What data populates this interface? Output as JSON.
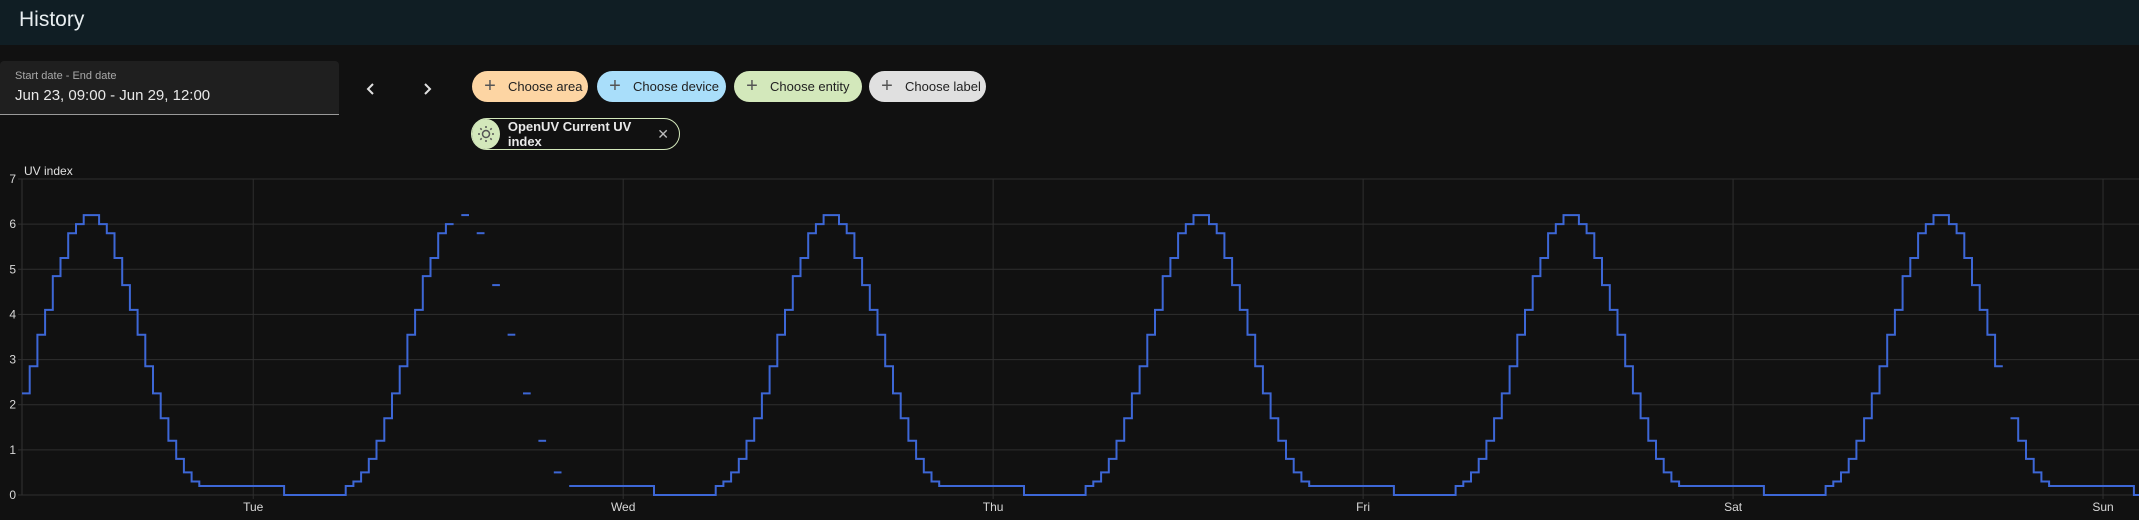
{
  "header": {
    "title": "History"
  },
  "date_picker": {
    "label": "Start date - End date",
    "value": "Jun 23, 09:00 - Jun 29, 12:00"
  },
  "nav": {
    "prev_icon": "chevron-left-icon",
    "next_icon": "chevron-right-icon"
  },
  "target_chips": [
    {
      "label": "Choose area",
      "color": "#fdd5a3",
      "icon": "plus-icon"
    },
    {
      "label": "Choose device",
      "color": "#a9defa",
      "icon": "plus-icon"
    },
    {
      "label": "Choose entity",
      "color": "#d3e8bb",
      "icon": "plus-icon"
    },
    {
      "label": "Choose label",
      "color": "#e0e0e0",
      "icon": "plus-icon"
    }
  ],
  "selected_entity": {
    "label": "OpenUV Current UV index",
    "icon": "weather-sunny-alert-icon",
    "remove_icon": "close-icon",
    "color": "#d3e8bb"
  },
  "chart_data": {
    "type": "line",
    "step": true,
    "ylabel": "UV index",
    "ylim": [
      0,
      7
    ],
    "yticks": [
      "0",
      "1",
      "2",
      "3",
      "4",
      "5",
      "6",
      "7"
    ],
    "xticks": [
      {
        "label": "Tue",
        "date": "2025-06-24"
      },
      {
        "label": "Wed",
        "date": "2025-06-25"
      },
      {
        "label": "Thu",
        "date": "2025-06-26"
      },
      {
        "label": "Fri",
        "date": "2025-06-27"
      },
      {
        "label": "Sat",
        "date": "2025-06-28"
      },
      {
        "label": "Sun",
        "date": "2025-06-29"
      }
    ],
    "x_range": [
      "2025-06-23 09:00",
      "2025-06-29 02:20"
    ],
    "grid": true,
    "line_color": "#3d67d6",
    "series": [
      {
        "days": [
          "2025-06-23",
          "2025-06-24",
          "2025-06-25",
          "2025-06-26",
          "2025-06-27",
          "2025-06-28",
          "2025-06-29"
        ],
        "daily_profile": {
          "start": "06:00",
          "step_minutes": 30,
          "values": [
            0.2,
            0.3,
            0.5,
            0.8,
            1.2,
            1.7,
            2.25,
            2.85,
            3.55,
            4.1,
            4.85,
            5.25,
            5.8,
            6.0,
            6.2,
            6.2,
            6.0,
            5.8,
            5.25,
            4.65,
            4.1,
            3.55,
            2.85,
            2.25,
            1.7,
            1.2,
            0.8,
            0.5,
            0.3
          ]
        },
        "overnight": [
          {
            "from": "20:30",
            "to": "02:00",
            "value": 0.2
          },
          {
            "from": "02:00",
            "to": "06:00",
            "value": 0
          }
        ],
        "missing": [
          "2025-06-24 13:00",
          "2025-06-24 14:00",
          "2025-06-24 15:00",
          "2025-06-24 16:00",
          "2025-06-24 17:00",
          "2025-06-24 18:00",
          "2025-06-24 19:00",
          "2025-06-24 20:00",
          "2025-06-28 17:30"
        ]
      }
    ]
  }
}
